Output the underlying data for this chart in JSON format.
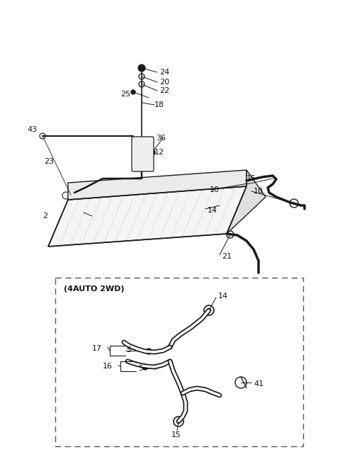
{
  "bg_color": "#ffffff",
  "line_color": "#1a1a1a",
  "text_color": "#111111",
  "fig_width": 4.8,
  "fig_height": 6.55,
  "dpi": 100
}
